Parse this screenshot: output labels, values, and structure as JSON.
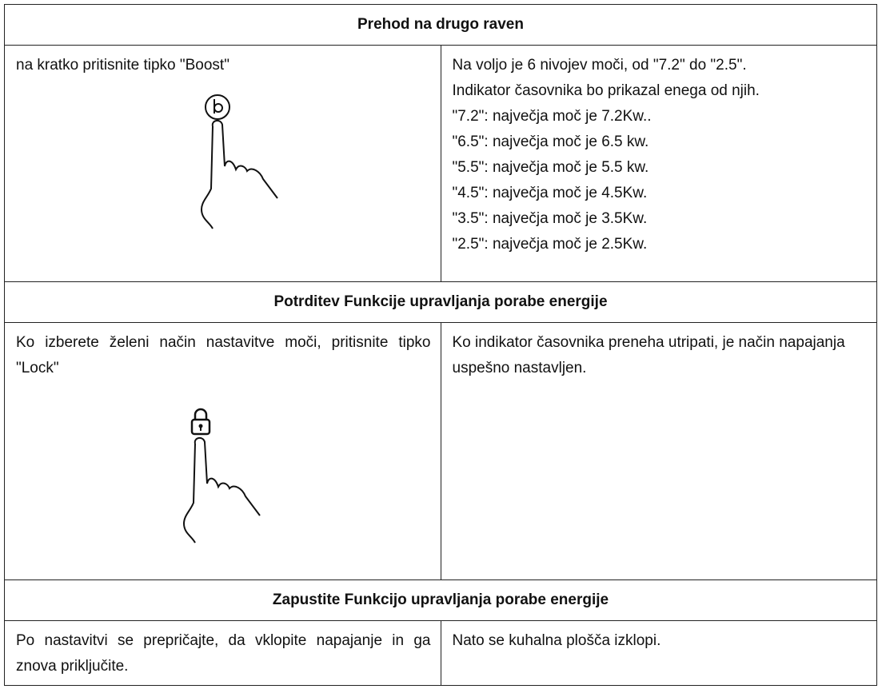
{
  "sections": [
    {
      "title": "Prehod na drugo raven",
      "left": [
        "na kratko pritisnite tipko \"Boost\""
      ],
      "right": [
        "Na voljo je 6 nivojev moči, od \"7.2\" do \"2.5\".",
        "Indikator časovnika bo prikazal enega od njih.",
        "\"7.2\": največja moč je 7.2Kw..",
        "\"6.5\": največja moč je 6.5 kw.",
        "\"5.5\": največja moč je 5.5 kw.",
        "\"4.5\": največja moč je 4.5Kw.",
        "\"3.5\": največja moč je 3.5Kw.",
        "\"2.5\": največja moč je 2.5Kw."
      ]
    },
    {
      "title": "Potrditev Funkcije upravljanja porabe energije",
      "left": [
        "Ko izberete želeni način nastavitve moči, pritisnite tipko \"Lock\""
      ],
      "right": [
        "Ko indikator časovnika preneha utripati, je način napajanja uspešno nastavljen."
      ]
    },
    {
      "title": "Zapustite Funkcijo upravljanja porabe energije",
      "left": [
        "Po nastavitvi se prepričajte, da vklopite napajanje in ga znova priključite."
      ],
      "right": [
        "Nato se kuhalna plošča izklopi."
      ]
    }
  ]
}
